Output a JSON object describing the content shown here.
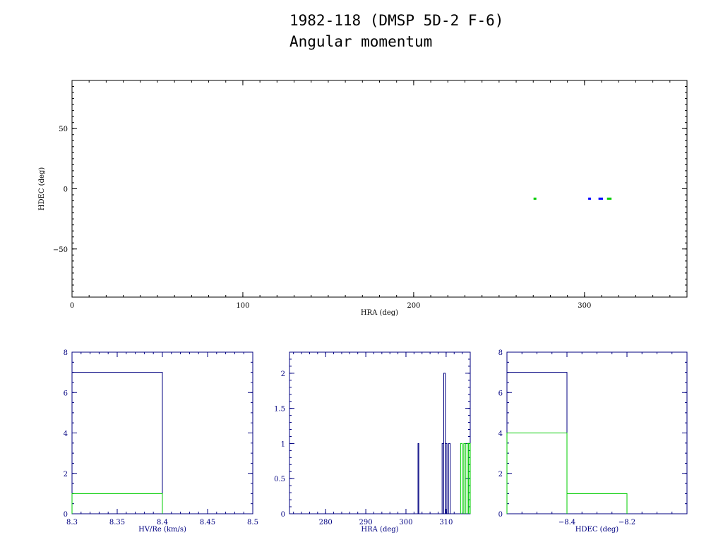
{
  "header": {
    "title": "1982-118 (DMSP 5D-2 F-6)",
    "subtitle": "Angular momentum"
  },
  "colors": {
    "black": "#000000",
    "navy": "#000080",
    "blue": "#0000ff",
    "green": "#00cc00"
  },
  "chart_data": [
    {
      "type": "scatter",
      "xlabel": "HRA (deg)",
      "ylabel": "HDEC (deg)",
      "xlim": [
        0,
        360
      ],
      "ylim": [
        -90,
        90
      ],
      "xticks": [
        0,
        100,
        200,
        300
      ],
      "yticks": [
        -50,
        0,
        50
      ],
      "series": [
        {
          "color": "#0000ff",
          "points": [
            [
              303,
              -8.5
            ],
            [
              309,
              -8.5
            ],
            [
              310,
              -8.5
            ]
          ]
        },
        {
          "color": "#00cc00",
          "points": [
            [
              271,
              -8.5
            ],
            [
              314,
              -8.5
            ],
            [
              315,
              -8.5
            ]
          ]
        }
      ]
    },
    {
      "type": "histogram",
      "xlabel": "HV/Re (km/s)",
      "xlim": [
        8.3,
        8.5
      ],
      "ylim": [
        0,
        8
      ],
      "xticks": [
        8.3,
        8.35,
        8.4,
        8.45,
        8.5
      ],
      "yticks": [
        0,
        2,
        4,
        6,
        8
      ],
      "series": [
        {
          "color": "#000080",
          "bins": [
            [
              8.3,
              8.4,
              7
            ]
          ]
        },
        {
          "color": "#00cc00",
          "bins": [
            [
              8.3,
              8.4,
              1
            ]
          ]
        }
      ]
    },
    {
      "type": "histogram",
      "xlabel": "HRA (deg)",
      "xlim": [
        271,
        316
      ],
      "ylim": [
        0,
        2.3
      ],
      "xticks": [
        280,
        290,
        300,
        310
      ],
      "yticks": [
        0,
        0.5,
        1,
        1.5,
        2
      ],
      "series": [
        {
          "color": "#000080",
          "bins": [
            [
              303.0,
              303.2,
              1
            ],
            [
              309.0,
              309.4,
              1
            ],
            [
              309.4,
              309.8,
              2
            ],
            [
              309.8,
              310.2,
              1
            ],
            [
              310.6,
              311.0,
              1
            ]
          ]
        },
        {
          "color": "#00cc00",
          "bins": [
            [
              313.6,
              314.0,
              1
            ],
            [
              314.4,
              314.8,
              1
            ],
            [
              315.2,
              315.6,
              1
            ],
            [
              315.6,
              316.0,
              1
            ]
          ]
        }
      ]
    },
    {
      "type": "histogram",
      "xlabel": "HDEC (deg)",
      "xlim": [
        -8.6,
        -8.0
      ],
      "ylim": [
        0,
        8
      ],
      "xticks": [
        -8.4,
        -8.2
      ],
      "yticks": [
        0,
        2,
        4,
        6,
        8
      ],
      "series": [
        {
          "color": "#000080",
          "bins": [
            [
              -8.6,
              -8.4,
              7
            ]
          ]
        },
        {
          "color": "#00cc00",
          "bins": [
            [
              -8.6,
              -8.4,
              4
            ],
            [
              -8.4,
              -8.2,
              1
            ]
          ]
        }
      ]
    }
  ]
}
